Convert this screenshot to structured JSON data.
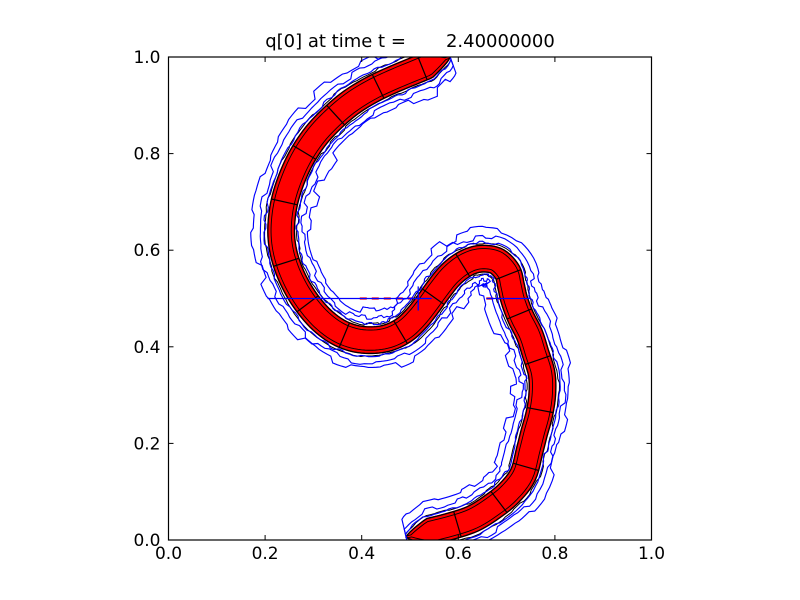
{
  "chart_data": {
    "type": "contour",
    "title": "q[0] at time t =       2.40000000",
    "variable": "q[0]",
    "time": "2.40000000",
    "xlim": [
      0.0,
      1.0
    ],
    "ylim": [
      0.0,
      1.0
    ],
    "xticks": [
      "0.0",
      "0.2",
      "0.4",
      "0.6",
      "0.8",
      "1.0"
    ],
    "yticks": [
      "0.0",
      "0.2",
      "0.4",
      "0.6",
      "0.8",
      "1.0"
    ],
    "grid": false,
    "aspect": "equal",
    "legend": null,
    "colors": {
      "band_fill": "#ff0000",
      "band_edge": "#000000",
      "outer_contours": "#0000ff",
      "frame": "#000000",
      "background": "#ffffff"
    },
    "band": {
      "half_width": 0.0275,
      "taper": 0.05,
      "centerline": [
        [
          0.583,
          1.0
        ],
        [
          0.545,
          0.986
        ],
        [
          0.505,
          0.97
        ],
        [
          0.462,
          0.952
        ],
        [
          0.42,
          0.932
        ],
        [
          0.378,
          0.906
        ],
        [
          0.34,
          0.874
        ],
        [
          0.306,
          0.838
        ],
        [
          0.277,
          0.795
        ],
        [
          0.255,
          0.748
        ],
        [
          0.24,
          0.7
        ],
        [
          0.2335,
          0.652
        ],
        [
          0.2355,
          0.61
        ],
        [
          0.246,
          0.568
        ],
        [
          0.264,
          0.527
        ],
        [
          0.288,
          0.489
        ],
        [
          0.318,
          0.455
        ],
        [
          0.352,
          0.43
        ],
        [
          0.389,
          0.4165
        ],
        [
          0.427,
          0.414
        ],
        [
          0.46,
          0.4205
        ],
        [
          0.49,
          0.4365
        ],
        [
          0.515,
          0.4605
        ],
        [
          0.5375,
          0.489
        ],
        [
          0.559,
          0.5185
        ],
        [
          0.581,
          0.546
        ],
        [
          0.605,
          0.5665
        ],
        [
          0.63,
          0.579
        ],
        [
          0.655,
          0.5825
        ],
        [
          0.681,
          0.5765
        ],
        [
          0.702,
          0.554
        ],
        [
          0.709,
          0.527
        ],
        [
          0.716,
          0.497
        ],
        [
          0.729,
          0.462
        ],
        [
          0.7475,
          0.425
        ],
        [
          0.76,
          0.386
        ],
        [
          0.7725,
          0.345
        ],
        [
          0.774,
          0.304
        ],
        [
          0.768,
          0.262
        ],
        [
          0.757,
          0.2215
        ],
        [
          0.748,
          0.186
        ],
        [
          0.734,
          0.135
        ],
        [
          0.706,
          0.098
        ],
        [
          0.672,
          0.07
        ],
        [
          0.63,
          0.044
        ],
        [
          0.582,
          0.028
        ],
        [
          0.534,
          0.016
        ],
        [
          0.492,
          0.006
        ]
      ]
    },
    "outer_contour_offsets": [
      0.0062,
      0.0176,
      0.031
    ],
    "outer_contour_jitter": [
      0.0031,
      0.0062,
      0.0093
    ],
    "inner_edge_inset": 0.0066,
    "double_edge_offset": 0.0054,
    "rung_spacing": 0.105,
    "midline": {
      "y": 0.5,
      "blue_segments": [
        [
          0.205,
          0.545
        ],
        [
          0.658,
          0.748
        ]
      ],
      "red_dash_segments": [
        [
          0.396,
          0.58
        ],
        [
          0.658,
          0.715
        ]
      ],
      "cross_tick_x": 0.517,
      "cross_tick_halflen": 0.025
    }
  }
}
